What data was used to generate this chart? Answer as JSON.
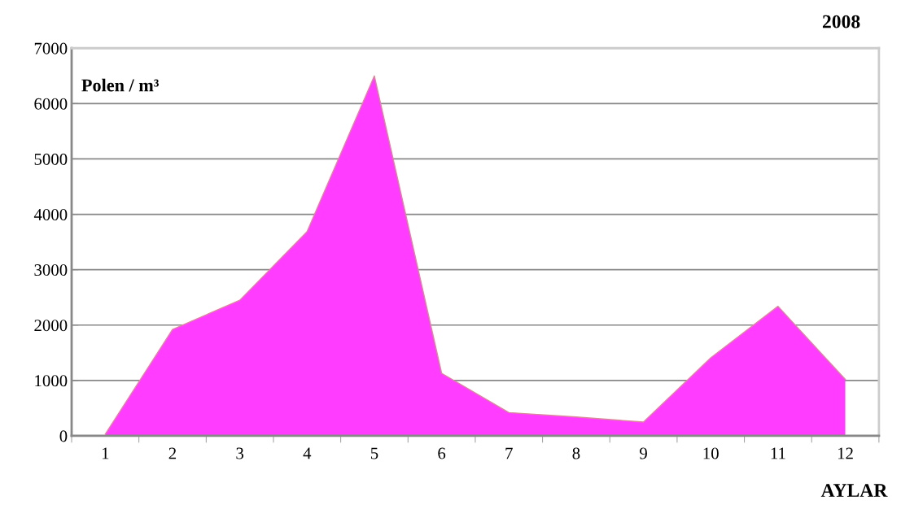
{
  "chart_data": {
    "type": "area",
    "title": "2008",
    "ylabel": "Polen / m³",
    "xlabel": "AYLAR",
    "categories": [
      "1",
      "2",
      "3",
      "4",
      "5",
      "6",
      "7",
      "8",
      "9",
      "10",
      "11",
      "12"
    ],
    "series": [
      {
        "color": "#ff3cff",
        "values": [
          30,
          1920,
          2450,
          3690,
          6500,
          1130,
          420,
          340,
          250,
          1410,
          2340,
          1020
        ]
      }
    ],
    "ylim": [
      0,
      7000
    ],
    "yticks": [
      0,
      1000,
      2000,
      3000,
      4000,
      5000,
      6000,
      7000
    ],
    "grid": "y",
    "legend": false
  }
}
